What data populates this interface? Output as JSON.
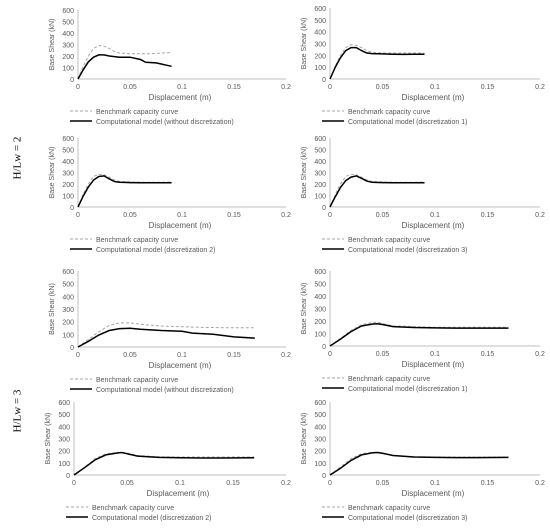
{
  "row_labels": [
    "H/Lw = 2",
    "H/Lw = 3"
  ],
  "colors": {
    "benchmark": "#a6a6a6",
    "model": "#000000",
    "axis": "#bfbfbf",
    "text": "#595959"
  },
  "chart_data": [
    {
      "type": "line",
      "xlabel": "Displacement (m)",
      "ylabel": "Base Shear (kN)",
      "xlim": [
        0,
        0.2
      ],
      "ylim": [
        0,
        600
      ],
      "xticks": [
        "0",
        "0.05",
        "0.1",
        "0.15",
        "0.2"
      ],
      "yticks": [
        "0",
        "100",
        "200",
        "300",
        "400",
        "500",
        "600"
      ],
      "grid": false,
      "legend": "bottom",
      "series": [
        {
          "name": "Benchmark capacity curve",
          "style": "dashed",
          "x": [
            0,
            0.005,
            0.01,
            0.015,
            0.02,
            0.025,
            0.03,
            0.035,
            0.04,
            0.05,
            0.06,
            0.07,
            0.08,
            0.09
          ],
          "y": [
            0,
            110,
            200,
            265,
            290,
            285,
            265,
            240,
            225,
            220,
            220,
            220,
            225,
            230
          ]
        },
        {
          "name": "Computational model (without discretization)",
          "style": "solid",
          "x": [
            0,
            0.005,
            0.01,
            0.015,
            0.02,
            0.025,
            0.03,
            0.04,
            0.05,
            0.06,
            0.065,
            0.075,
            0.08,
            0.085,
            0.09
          ],
          "y": [
            0,
            80,
            150,
            190,
            210,
            210,
            200,
            190,
            190,
            170,
            145,
            140,
            130,
            120,
            110
          ]
        }
      ]
    },
    {
      "type": "line",
      "xlabel": "Displacement (m)",
      "ylabel": "Base Shear (kN)",
      "xlim": [
        0,
        0.2
      ],
      "ylim": [
        0,
        600
      ],
      "xticks": [
        "0",
        "0.05",
        "0.1",
        "0.15",
        "0.2"
      ],
      "yticks": [
        "0",
        "100",
        "200",
        "300",
        "400",
        "500",
        "600"
      ],
      "grid": false,
      "legend": "bottom",
      "series": [
        {
          "name": "Benchmark capacity curve",
          "style": "dashed",
          "x": [
            0,
            0.005,
            0.01,
            0.015,
            0.02,
            0.025,
            0.03,
            0.035,
            0.04,
            0.05,
            0.06,
            0.07,
            0.08,
            0.09
          ],
          "y": [
            0,
            110,
            200,
            265,
            290,
            285,
            265,
            240,
            225,
            220,
            220,
            220,
            220,
            220
          ]
        },
        {
          "name": "Computational model (discretization 1)",
          "style": "solid",
          "x": [
            0,
            0.005,
            0.01,
            0.015,
            0.02,
            0.025,
            0.03,
            0.035,
            0.04,
            0.05,
            0.06,
            0.07,
            0.08,
            0.09
          ],
          "y": [
            0,
            100,
            180,
            240,
            265,
            265,
            240,
            220,
            215,
            212,
            210,
            208,
            210,
            210
          ]
        }
      ]
    },
    {
      "type": "line",
      "xlabel": "Displacement (m)",
      "ylabel": "Base Shear (kN)",
      "xlim": [
        0,
        0.2
      ],
      "ylim": [
        0,
        600
      ],
      "xticks": [
        "0",
        "0.05",
        "0.1",
        "0.15",
        "0.2"
      ],
      "yticks": [
        "0",
        "100",
        "200",
        "300",
        "400",
        "500",
        "600"
      ],
      "grid": false,
      "legend": "bottom",
      "series": [
        {
          "name": "Benchmark capacity curve",
          "style": "dashed",
          "x": [
            0,
            0.005,
            0.01,
            0.015,
            0.02,
            0.025,
            0.03,
            0.035,
            0.04,
            0.05,
            0.06,
            0.07,
            0.08,
            0.09
          ],
          "y": [
            0,
            110,
            200,
            265,
            285,
            280,
            260,
            235,
            222,
            218,
            215,
            215,
            215,
            218
          ]
        },
        {
          "name": "Computational model (discretization 2)",
          "style": "solid",
          "x": [
            0,
            0.005,
            0.01,
            0.015,
            0.02,
            0.025,
            0.03,
            0.035,
            0.04,
            0.05,
            0.06,
            0.07,
            0.08,
            0.09
          ],
          "y": [
            0,
            95,
            175,
            235,
            265,
            270,
            245,
            222,
            215,
            212,
            210,
            210,
            210,
            210
          ]
        }
      ]
    },
    {
      "type": "line",
      "xlabel": "Displacement (m)",
      "ylabel": "Base Shear (kN)",
      "xlim": [
        0,
        0.2
      ],
      "ylim": [
        0,
        600
      ],
      "xticks": [
        "0",
        "0.05",
        "0.1",
        "0.15",
        "0.2"
      ],
      "yticks": [
        "0",
        "100",
        "200",
        "300",
        "400",
        "500",
        "600"
      ],
      "grid": false,
      "legend": "bottom",
      "series": [
        {
          "name": "Benchmark capacity curve",
          "style": "dashed",
          "x": [
            0,
            0.005,
            0.01,
            0.015,
            0.02,
            0.025,
            0.03,
            0.035,
            0.04,
            0.05,
            0.06,
            0.07,
            0.08,
            0.09
          ],
          "y": [
            0,
            110,
            200,
            265,
            285,
            280,
            260,
            235,
            222,
            218,
            215,
            215,
            215,
            218
          ]
        },
        {
          "name": "Computational model (discretization 3)",
          "style": "solid",
          "x": [
            0,
            0.005,
            0.01,
            0.015,
            0.02,
            0.025,
            0.03,
            0.035,
            0.04,
            0.05,
            0.06,
            0.07,
            0.08,
            0.09
          ],
          "y": [
            0,
            90,
            170,
            230,
            260,
            270,
            250,
            225,
            215,
            212,
            210,
            210,
            210,
            210
          ]
        }
      ]
    },
    {
      "type": "line",
      "xlabel": "Displacement (m)",
      "ylabel": "Base Shear (kN)",
      "xlim": [
        0,
        0.2
      ],
      "ylim": [
        0,
        600
      ],
      "xticks": [
        "0",
        "0.05",
        "0.1",
        "0.15",
        "0.2"
      ],
      "yticks": [
        "0",
        "100",
        "200",
        "300",
        "400",
        "500",
        "600"
      ],
      "grid": false,
      "legend": "bottom",
      "series": [
        {
          "name": "Benchmark capacity curve",
          "style": "dashed",
          "x": [
            0,
            0.01,
            0.02,
            0.03,
            0.04,
            0.05,
            0.06,
            0.08,
            0.1,
            0.12,
            0.14,
            0.16,
            0.17
          ],
          "y": [
            0,
            60,
            120,
            170,
            190,
            190,
            180,
            165,
            160,
            155,
            152,
            152,
            152
          ]
        },
        {
          "name": "Computational model (without discretization)",
          "style": "solid",
          "x": [
            0,
            0.01,
            0.02,
            0.03,
            0.04,
            0.05,
            0.06,
            0.08,
            0.1,
            0.11,
            0.13,
            0.15,
            0.17
          ],
          "y": [
            0,
            45,
            95,
            130,
            145,
            148,
            140,
            130,
            125,
            110,
            100,
            80,
            70
          ]
        }
      ]
    },
    {
      "type": "line",
      "xlabel": "Displacement (m)",
      "ylabel": "Base Shear (kN)",
      "xlim": [
        0,
        0.2
      ],
      "ylim": [
        0,
        600
      ],
      "xticks": [
        "0",
        "0.05",
        "0.1",
        "0.15",
        "0.2"
      ],
      "yticks": [
        "0",
        "100",
        "200",
        "300",
        "400",
        "500",
        "600"
      ],
      "grid": false,
      "legend": "bottom",
      "series": [
        {
          "name": "Benchmark capacity curve",
          "style": "dashed",
          "x": [
            0,
            0.01,
            0.02,
            0.03,
            0.04,
            0.045,
            0.05,
            0.06,
            0.08,
            0.1,
            0.12,
            0.14,
            0.17
          ],
          "y": [
            0,
            60,
            125,
            170,
            188,
            190,
            180,
            162,
            155,
            150,
            150,
            150,
            150
          ]
        },
        {
          "name": "Computational model (discretization 1)",
          "style": "solid",
          "x": [
            0,
            0.01,
            0.02,
            0.03,
            0.04,
            0.045,
            0.05,
            0.06,
            0.08,
            0.1,
            0.12,
            0.14,
            0.17
          ],
          "y": [
            0,
            55,
            115,
            160,
            175,
            178,
            172,
            155,
            148,
            145,
            143,
            143,
            143
          ]
        }
      ]
    },
    {
      "type": "line",
      "xlabel": "Displacement (m)",
      "ylabel": "Base Shear (kN)",
      "xlim": [
        0,
        0.2
      ],
      "ylim": [
        0,
        600
      ],
      "xticks": [
        "0",
        "0.05",
        "0.1",
        "0.15",
        "0.2"
      ],
      "yticks": [
        "0",
        "100",
        "200",
        "300",
        "400",
        "500",
        "600"
      ],
      "grid": false,
      "legend": "bottom",
      "series": [
        {
          "name": "Benchmark capacity curve",
          "style": "dashed",
          "x": [
            0,
            0.01,
            0.02,
            0.03,
            0.04,
            0.045,
            0.05,
            0.06,
            0.08,
            0.1,
            0.12,
            0.14,
            0.17
          ],
          "y": [
            0,
            65,
            135,
            175,
            185,
            188,
            180,
            160,
            150,
            148,
            148,
            148,
            148
          ]
        },
        {
          "name": "Computational model (discretization 2)",
          "style": "solid",
          "x": [
            0,
            0.01,
            0.02,
            0.03,
            0.04,
            0.045,
            0.05,
            0.06,
            0.08,
            0.1,
            0.12,
            0.14,
            0.17
          ],
          "y": [
            0,
            60,
            125,
            165,
            180,
            185,
            175,
            155,
            145,
            142,
            140,
            140,
            142
          ]
        }
      ]
    },
    {
      "type": "line",
      "xlabel": "Displacement (m)",
      "ylabel": "Base Shear (kN)",
      "xlim": [
        0,
        0.2
      ],
      "ylim": [
        0,
        600
      ],
      "xticks": [
        "0",
        "0.05",
        "0.1",
        "0.15",
        "0.2"
      ],
      "yticks": [
        "0",
        "100",
        "200",
        "300",
        "400",
        "500",
        "600"
      ],
      "grid": false,
      "legend": "bottom",
      "series": [
        {
          "name": "Benchmark capacity curve",
          "style": "dashed",
          "x": [
            0,
            0.01,
            0.02,
            0.03,
            0.04,
            0.045,
            0.05,
            0.06,
            0.08,
            0.1,
            0.12,
            0.14,
            0.17
          ],
          "y": [
            0,
            65,
            135,
            175,
            185,
            188,
            180,
            160,
            150,
            148,
            148,
            148,
            148
          ]
        },
        {
          "name": "Computational model (discretization 3)",
          "style": "solid",
          "x": [
            0,
            0.01,
            0.02,
            0.03,
            0.04,
            0.045,
            0.05,
            0.06,
            0.08,
            0.1,
            0.12,
            0.14,
            0.17
          ],
          "y": [
            0,
            55,
            120,
            165,
            182,
            185,
            178,
            160,
            148,
            145,
            143,
            143,
            145
          ]
        }
      ]
    }
  ]
}
